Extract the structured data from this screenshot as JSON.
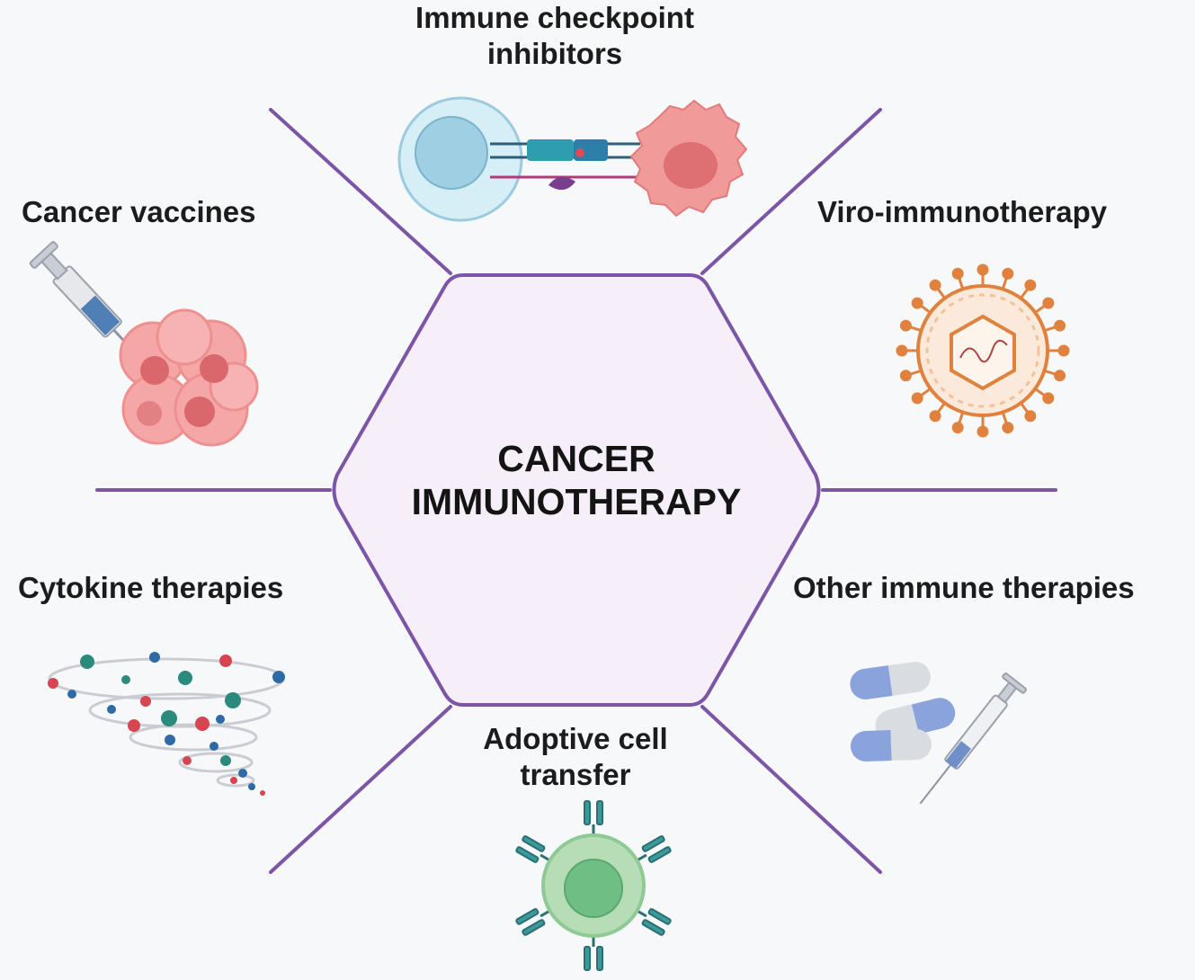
{
  "center": {
    "line1": "CANCER",
    "line2": "IMMUNOTHERAPY"
  },
  "sections": {
    "checkpoint": {
      "line1": "Immune checkpoint",
      "line2": "inhibitors",
      "icon": "checkpoint-binding-icon"
    },
    "vaccines": {
      "label": "Cancer vaccines",
      "icon": "syringe-tumor-icon"
    },
    "viro": {
      "label": "Viro-immunotherapy",
      "icon": "virus-icon"
    },
    "cytokine": {
      "label": "Cytokine therapies",
      "icon": "cytokine-swirl-icon"
    },
    "other": {
      "label": "Other immune therapies",
      "icon": "pills-syringe-icon"
    },
    "adoptive": {
      "line1": "Adoptive cell",
      "line2": "transfer",
      "icon": "t-cell-icon"
    }
  },
  "colors": {
    "background": "#f7f8fa",
    "hexagon_stroke": "#7c55a6",
    "hexagon_fill": "#f6eef8",
    "tumor": "#ef8c8c",
    "immune_cell": "#b9e2ef",
    "virus": "#e0823e",
    "t_cell": "#8fc994",
    "pill": "#8ba3dd"
  }
}
